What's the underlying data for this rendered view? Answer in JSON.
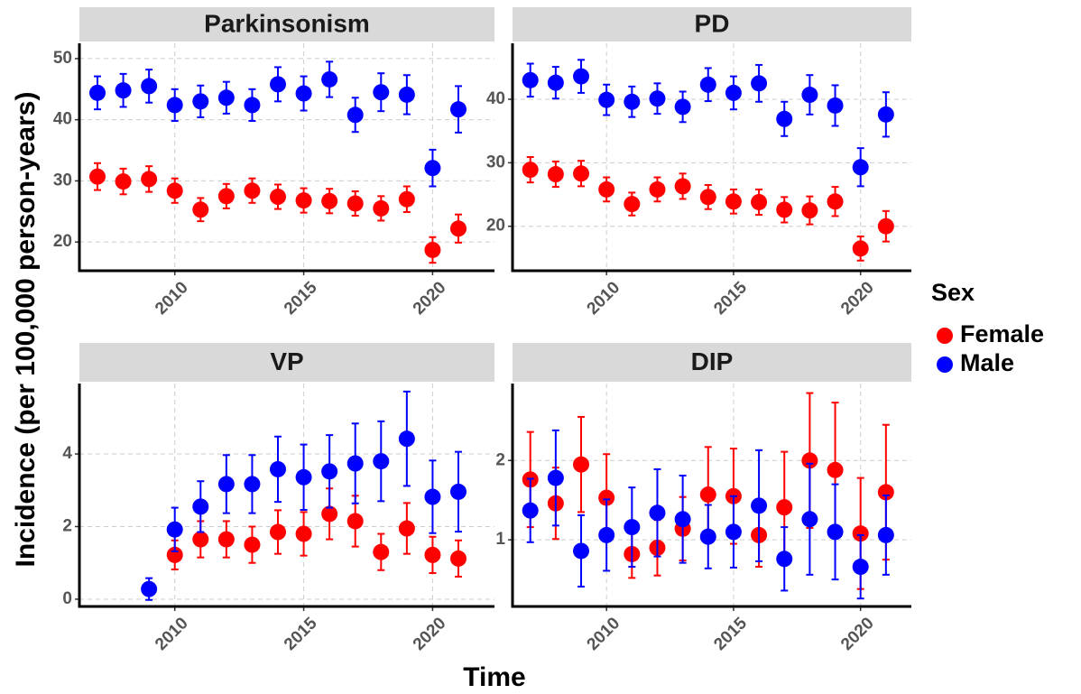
{
  "xlabel": "Time",
  "ylabel": "Incidence (per 100,000 person-years)",
  "legend_title": "Sex",
  "chart_data": [
    {
      "type": "errorbar-scatter",
      "title": "Parkinsonism",
      "xlim": [
        2006.3,
        2022.4
      ],
      "xticks": [
        2010,
        2015,
        2020
      ],
      "ylim": [
        15.3,
        52.5
      ],
      "yticks": [
        20,
        30,
        40,
        50
      ],
      "grid": true,
      "series": [
        {
          "name": "Female",
          "color": "#ff0000",
          "x": [
            2007,
            2008,
            2009,
            2010,
            2011,
            2012,
            2013,
            2014,
            2015,
            2016,
            2017,
            2018,
            2019,
            2020,
            2021
          ],
          "values": [
            30.7,
            29.9,
            30.3,
            28.4,
            25.3,
            27.5,
            28.4,
            27.4,
            26.8,
            26.7,
            26.3,
            25.5,
            27.0,
            18.7,
            22.2
          ],
          "errors": [
            2.2,
            2.1,
            2.1,
            2.0,
            1.9,
            2.0,
            2.0,
            2.0,
            2.0,
            2.0,
            2.0,
            2.0,
            2.1,
            2.1,
            2.3
          ]
        },
        {
          "name": "Male",
          "color": "#0000ff",
          "x": [
            2007,
            2008,
            2009,
            2010,
            2011,
            2012,
            2013,
            2014,
            2015,
            2016,
            2017,
            2018,
            2019,
            2020,
            2021
          ],
          "values": [
            44.4,
            44.8,
            45.5,
            42.4,
            43.0,
            43.6,
            42.4,
            45.8,
            44.3,
            46.6,
            40.8,
            44.5,
            44.1,
            32.1,
            41.7
          ],
          "errors": [
            2.7,
            2.7,
            2.7,
            2.6,
            2.6,
            2.6,
            2.6,
            2.8,
            2.8,
            2.9,
            2.8,
            3.1,
            3.2,
            3.0,
            3.8
          ]
        }
      ]
    },
    {
      "type": "errorbar-scatter",
      "title": "PD",
      "xlim": [
        2006.3,
        2022.0
      ],
      "xticks": [
        2010,
        2015,
        2020
      ],
      "ylim": [
        13.0,
        48.8
      ],
      "yticks": [
        20,
        30,
        40
      ],
      "grid": true,
      "series": [
        {
          "name": "Female",
          "color": "#ff0000",
          "x": [
            2007,
            2008,
            2009,
            2010,
            2011,
            2012,
            2013,
            2014,
            2015,
            2016,
            2017,
            2018,
            2019,
            2020,
            2021
          ],
          "values": [
            28.9,
            28.2,
            28.3,
            25.8,
            23.5,
            25.8,
            26.3,
            24.6,
            23.9,
            23.8,
            22.6,
            22.5,
            23.9,
            16.5,
            20.0
          ],
          "errors": [
            2.0,
            2.0,
            2.0,
            1.9,
            1.8,
            1.9,
            2.0,
            1.9,
            1.9,
            2.0,
            2.0,
            2.2,
            2.3,
            1.9,
            2.4
          ]
        },
        {
          "name": "Male",
          "color": "#0000ff",
          "x": [
            2007,
            2008,
            2009,
            2010,
            2011,
            2012,
            2013,
            2014,
            2015,
            2016,
            2017,
            2018,
            2019,
            2020,
            2021
          ],
          "values": [
            43.0,
            42.6,
            43.6,
            39.9,
            39.6,
            40.1,
            38.8,
            42.3,
            41.0,
            42.5,
            36.9,
            40.7,
            39.0,
            29.3,
            37.6
          ],
          "errors": [
            2.6,
            2.5,
            2.6,
            2.4,
            2.4,
            2.4,
            2.4,
            2.6,
            2.6,
            2.9,
            2.7,
            3.1,
            3.2,
            3.0,
            3.5
          ]
        }
      ]
    },
    {
      "type": "errorbar-scatter",
      "title": "VP",
      "xlim": [
        2006.3,
        2022.4
      ],
      "xticks": [
        2010,
        2015,
        2020
      ],
      "ylim": [
        -0.2,
        5.94
      ],
      "yticks": [
        0,
        2,
        4
      ],
      "grid": true,
      "series": [
        {
          "name": "Female",
          "color": "#ff0000",
          "x": [
            2010,
            2011,
            2012,
            2013,
            2014,
            2015,
            2016,
            2017,
            2018,
            2019,
            2020,
            2021
          ],
          "values": [
            1.22,
            1.65,
            1.65,
            1.5,
            1.85,
            1.8,
            2.35,
            2.15,
            1.3,
            1.95,
            1.22,
            1.12
          ],
          "errors": [
            0.4,
            0.5,
            0.5,
            0.5,
            0.6,
            0.6,
            0.7,
            0.7,
            0.5,
            0.7,
            0.5,
            0.5
          ]
        },
        {
          "name": "Male",
          "color": "#0000ff",
          "x": [
            2009,
            2010,
            2011,
            2012,
            2013,
            2014,
            2015,
            2016,
            2017,
            2018,
            2019,
            2020,
            2021
          ],
          "values": [
            0.28,
            1.92,
            2.55,
            3.17,
            3.17,
            3.58,
            3.36,
            3.52,
            3.74,
            3.8,
            4.42,
            2.82,
            2.96
          ],
          "errors": [
            0.3,
            0.6,
            0.7,
            0.8,
            0.8,
            0.9,
            0.9,
            1.0,
            1.1,
            1.1,
            1.3,
            1.0,
            1.1
          ]
        }
      ]
    },
    {
      "type": "errorbar-scatter",
      "title": "DIP",
      "xlim": [
        2006.3,
        2022.0
      ],
      "xticks": [
        2010,
        2015,
        2020
      ],
      "ylim": [
        0.16,
        2.97
      ],
      "yticks": [
        1,
        2
      ],
      "grid": true,
      "series": [
        {
          "name": "Female",
          "color": "#ff0000",
          "x": [
            2007,
            2008,
            2009,
            2010,
            2011,
            2012,
            2013,
            2014,
            2015,
            2016,
            2017,
            2018,
            2019,
            2020,
            2021
          ],
          "values": [
            1.76,
            1.46,
            1.95,
            1.53,
            0.82,
            0.9,
            1.14,
            1.57,
            1.55,
            1.06,
            1.41,
            2.0,
            1.88,
            1.08,
            1.6
          ],
          "errors": [
            0.6,
            0.45,
            0.6,
            0.55,
            0.3,
            0.35,
            0.4,
            0.6,
            0.6,
            0.4,
            0.7,
            0.85,
            0.85,
            0.7,
            0.85
          ]
        },
        {
          "name": "Male",
          "color": "#0000ff",
          "x": [
            2007,
            2008,
            2009,
            2010,
            2011,
            2012,
            2013,
            2014,
            2015,
            2016,
            2017,
            2018,
            2019,
            2020,
            2021
          ],
          "values": [
            1.37,
            1.78,
            0.86,
            1.06,
            1.16,
            1.34,
            1.26,
            1.04,
            1.1,
            1.43,
            0.76,
            1.26,
            1.1,
            0.66,
            1.06
          ],
          "errors": [
            0.4,
            0.6,
            0.45,
            0.45,
            0.5,
            0.55,
            0.55,
            0.4,
            0.45,
            0.7,
            0.4,
            0.7,
            0.6,
            0.4,
            0.5
          ]
        }
      ]
    }
  ]
}
